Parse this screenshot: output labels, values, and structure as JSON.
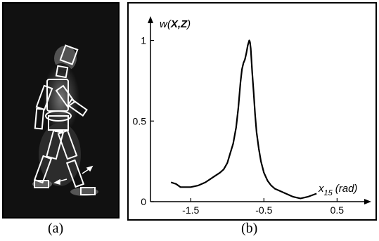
{
  "captions": {
    "a": "(a)",
    "b": "(b)"
  },
  "chart_data": {
    "type": "line",
    "ylabel_prefix": "w(",
    "ylabel_bold": "X,Z",
    "ylabel_suffix": ")",
    "xlabel_main": "x",
    "xlabel_sub": "15",
    "xlabel_unit": "(rad)",
    "xlim": [
      -2.05,
      0.9
    ],
    "ylim": [
      0,
      1.12
    ],
    "xticks": [
      -1.5,
      -0.5,
      0.5
    ],
    "xtick_labels": [
      "-1.5",
      "-0.5",
      "0.5"
    ],
    "yticks": [
      0,
      0.5,
      1
    ],
    "ytick_labels": [
      "0",
      "0.5",
      "1"
    ],
    "series": [
      {
        "x": [
          -1.77,
          -1.7,
          -1.64,
          -1.58,
          -1.5,
          -1.4,
          -1.3,
          -1.2,
          -1.1,
          -1.05,
          -1.0,
          -0.96,
          -0.92,
          -0.88,
          -0.85,
          -0.82,
          -0.8,
          -0.78,
          -0.76,
          -0.74,
          -0.72,
          -0.7,
          -0.69,
          -0.68,
          -0.67,
          -0.66,
          -0.64,
          -0.62,
          -0.6,
          -0.57,
          -0.54,
          -0.5,
          -0.45,
          -0.4,
          -0.35,
          -0.3,
          -0.2,
          -0.1,
          0.0,
          0.1,
          0.22
        ],
        "y": [
          0.12,
          0.11,
          0.09,
          0.09,
          0.09,
          0.1,
          0.12,
          0.15,
          0.18,
          0.2,
          0.24,
          0.3,
          0.36,
          0.46,
          0.58,
          0.74,
          0.82,
          0.86,
          0.88,
          0.92,
          0.97,
          1.0,
          0.99,
          0.95,
          0.88,
          0.8,
          0.68,
          0.54,
          0.43,
          0.33,
          0.25,
          0.18,
          0.13,
          0.1,
          0.08,
          0.07,
          0.05,
          0.03,
          0.02,
          0.03,
          0.05
        ]
      }
    ]
  }
}
